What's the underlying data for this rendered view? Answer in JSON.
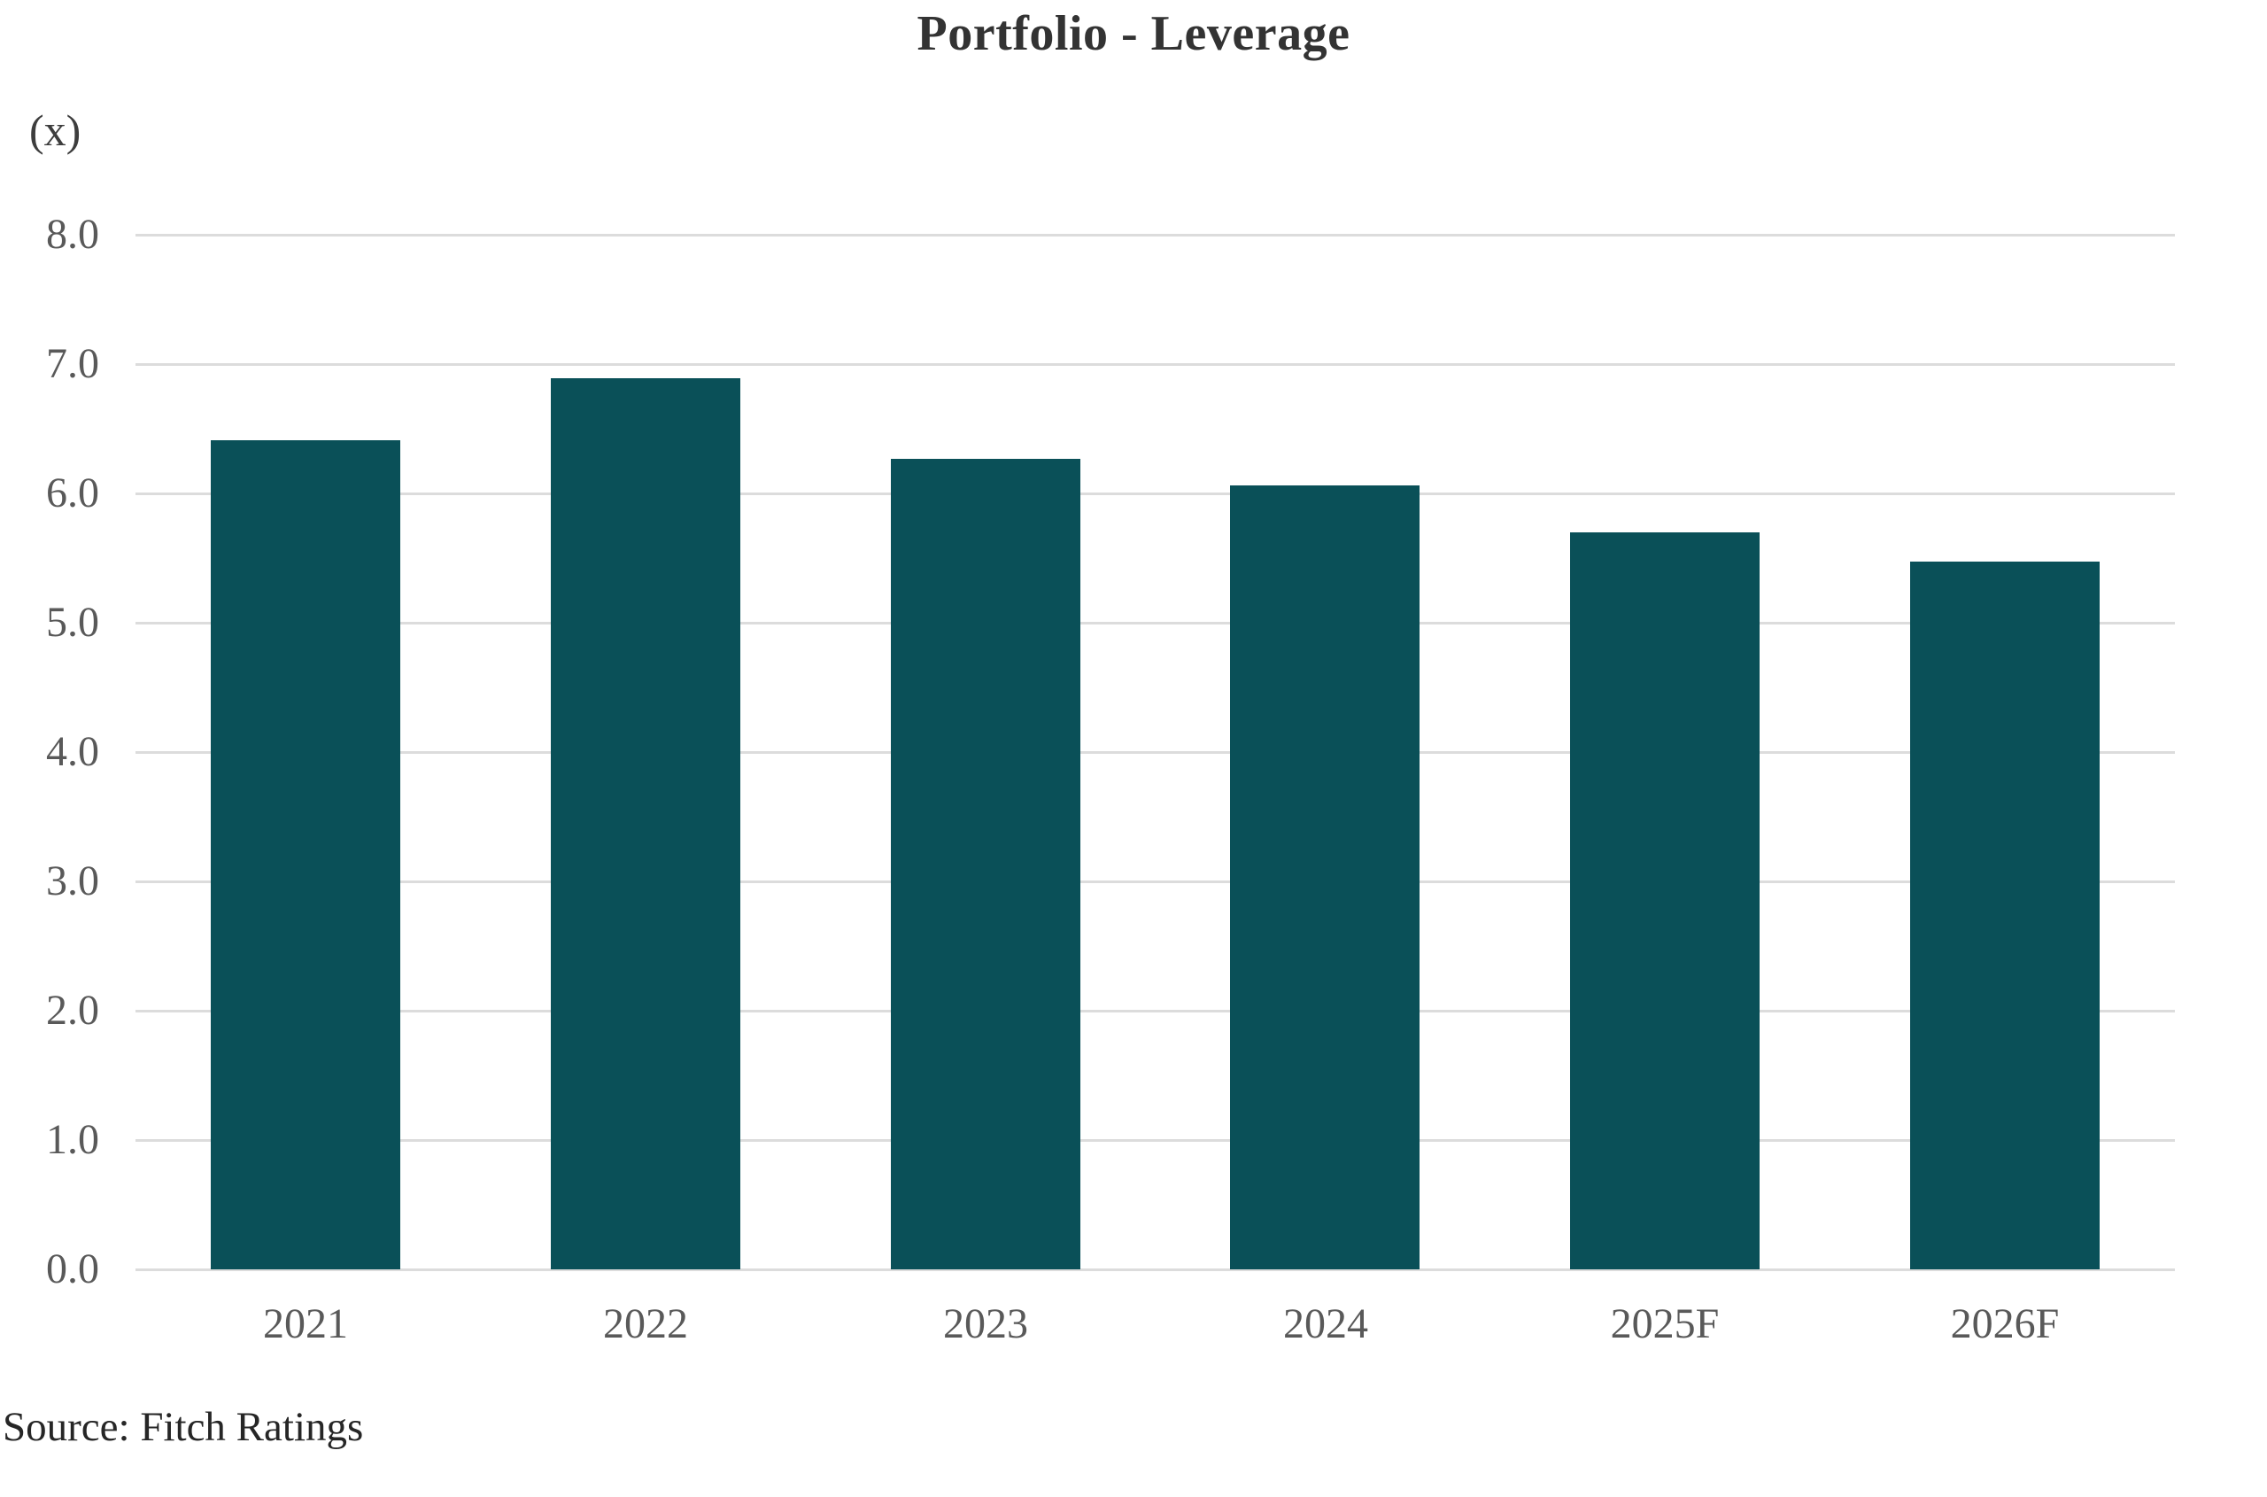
{
  "chart_data": {
    "type": "bar",
    "title": "Portfolio - Leverage",
    "unit_label": "(x)",
    "categories": [
      "2021",
      "2022",
      "2023",
      "2024",
      "2025F",
      "2026F"
    ],
    "values": [
      6.41,
      6.89,
      6.27,
      6.06,
      5.7,
      5.47
    ],
    "xlabel": "",
    "ylabel": "(x)",
    "ylim": [
      0,
      8
    ],
    "yticks": [
      0,
      1,
      2,
      3,
      4,
      5,
      6,
      7,
      8
    ],
    "ytick_labels": [
      "0.0",
      "1.0",
      "2.0",
      "3.0",
      "4.0",
      "5.0",
      "6.0",
      "7.0",
      "8.0"
    ],
    "grid": true,
    "legend": "none",
    "source": "Source: Fitch Ratings",
    "bar_color": "#0a5058",
    "gridline_color": "#dcdcdc",
    "tick_label_color": "#595959",
    "title_color": "#333333",
    "source_color": "#262626"
  }
}
